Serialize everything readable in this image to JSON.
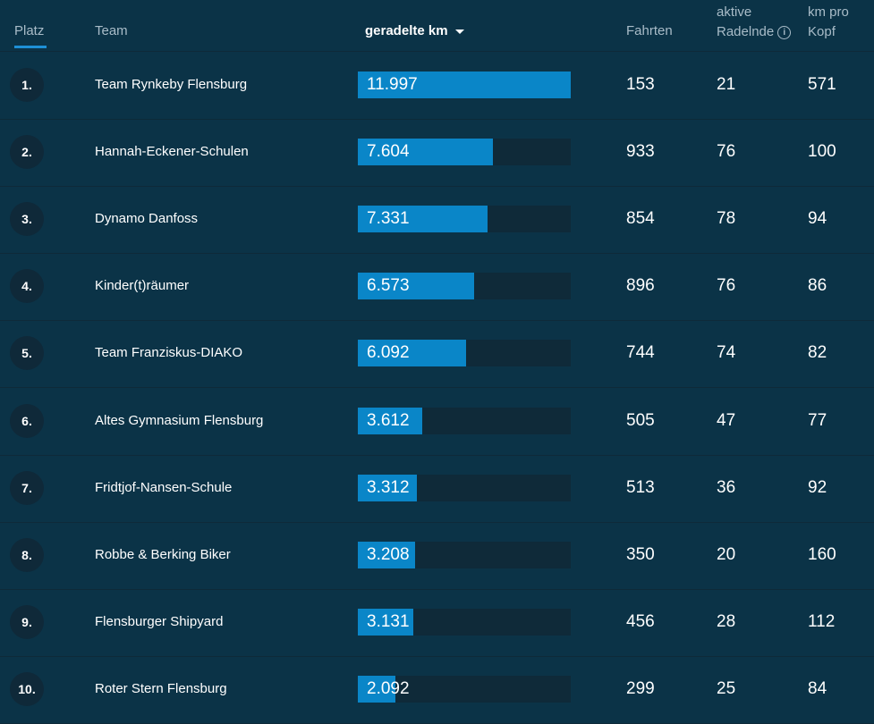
{
  "header": {
    "rank_label": "Platz",
    "team_label": "Team",
    "km_label": "geradelte km",
    "trips_label": "Fahrten",
    "active_label_line1": "aktive",
    "active_label_line2": "Radelnde",
    "perhead_label_line1": "km pro",
    "perhead_label_line2": "Kopf",
    "info_icon_glyph": "i"
  },
  "colors": {
    "background": "#0b3347",
    "bar_fill": "#0a86c8",
    "bar_track": "#0f2a39",
    "accent": "#1e90d6"
  },
  "max_km": 11997,
  "rows": [
    {
      "rank": "1.",
      "team": "Team Rynkeby Flensburg",
      "km": "11.997",
      "km_value": 11997,
      "trips": "153",
      "active": "21",
      "per_head": "571"
    },
    {
      "rank": "2.",
      "team": "Hannah-Eckener-Schulen",
      "km": "7.604",
      "km_value": 7604,
      "trips": "933",
      "active": "76",
      "per_head": "100"
    },
    {
      "rank": "3.",
      "team": "Dynamo Danfoss",
      "km": "7.331",
      "km_value": 7331,
      "trips": "854",
      "active": "78",
      "per_head": "94"
    },
    {
      "rank": "4.",
      "team": "Kinder(t)räumer",
      "km": "6.573",
      "km_value": 6573,
      "trips": "896",
      "active": "76",
      "per_head": "86"
    },
    {
      "rank": "5.",
      "team": "Team Franziskus-DIAKO",
      "km": "6.092",
      "km_value": 6092,
      "trips": "744",
      "active": "74",
      "per_head": "82"
    },
    {
      "rank": "6.",
      "team": "Altes Gymnasium Flensburg",
      "km": "3.612",
      "km_value": 3612,
      "trips": "505",
      "active": "47",
      "per_head": "77"
    },
    {
      "rank": "7.",
      "team": "Fridtjof-Nansen-Schule",
      "km": "3.312",
      "km_value": 3312,
      "trips": "513",
      "active": "36",
      "per_head": "92"
    },
    {
      "rank": "8.",
      "team": "Robbe & Berking Biker",
      "km": "3.208",
      "km_value": 3208,
      "trips": "350",
      "active": "20",
      "per_head": "160"
    },
    {
      "rank": "9.",
      "team": "Flensburger Shipyard",
      "km": "3.131",
      "km_value": 3131,
      "trips": "456",
      "active": "28",
      "per_head": "112"
    },
    {
      "rank": "10.",
      "team": "Roter Stern Flensburg",
      "km": "2.092",
      "km_value": 2092,
      "trips": "299",
      "active": "25",
      "per_head": "84"
    }
  ]
}
